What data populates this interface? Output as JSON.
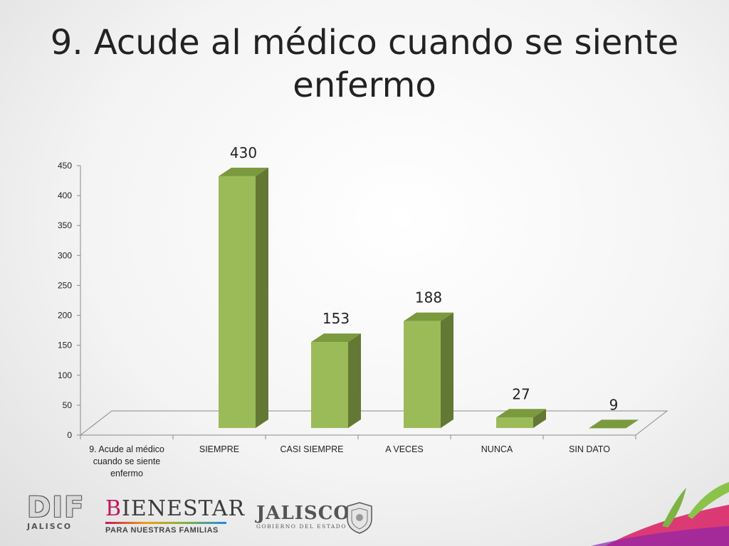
{
  "title": "9. Acude al médico cuando se siente enfermo",
  "chart_data": {
    "type": "bar",
    "categories": [
      "9. Acude al médico cuando se siente enfermo",
      "SIEMPRE",
      "CASI SIEMPRE",
      "A VECES",
      "NUNCA",
      "SIN DATO"
    ],
    "values": [
      null,
      430,
      153,
      188,
      27,
      9
    ],
    "data_labels": [
      "",
      "430",
      "153",
      "188",
      "27",
      "9"
    ],
    "ylim": [
      0,
      450
    ],
    "yticks": [
      0,
      50,
      100,
      150,
      200,
      250,
      300,
      350,
      400,
      450
    ],
    "style": "3d-column",
    "grid": false,
    "legend": "none",
    "colors": {
      "front": "#9bbb59",
      "side": "#637834",
      "top": "#7a9a3d"
    }
  },
  "logos": {
    "dif": {
      "main": "DIF",
      "sub": "JALISCO"
    },
    "bienestar": {
      "main_first": "B",
      "main_rest": "IENESTAR",
      "sub": "PARA NUESTRAS FAMILIAS"
    },
    "jalisco": {
      "main": "JALISCO",
      "sub": "GOBIERNO DEL ESTADO"
    }
  }
}
